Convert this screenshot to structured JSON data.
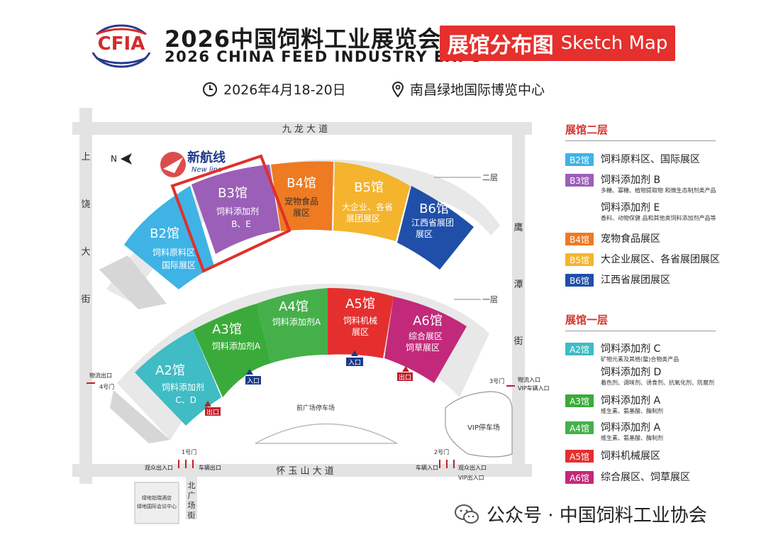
{
  "header": {
    "logo_text": "CFIA",
    "title_cn": "2026中国饲料工业展览会",
    "title_en": "2026 CHINA FEED INDUSTRY EXPO",
    "badge_cn": "展馆分布图",
    "badge_en": "Sketch Map",
    "date": "2026年4月18-20日",
    "venue": "南昌绿地国际博览中心"
  },
  "colors": {
    "B2": "#3fb3e6",
    "B3": "#9b5fb8",
    "B4": "#ee7a22",
    "B5": "#f4b42d",
    "B6": "#1f4fa8",
    "A2": "#3fbcc4",
    "A3": "#3aab3a",
    "A4": "#45b04a",
    "A5": "#e52f2f",
    "A6": "#c2297a",
    "accent": "#e5302d"
  },
  "map": {
    "north_label": "N",
    "watermark_cn": "新航线",
    "watermark_en": "New line",
    "roads": {
      "north": "九 龙 大 道",
      "south": "怀 玉 山 大 道",
      "west": [
        "上",
        "饶",
        "大",
        "街"
      ],
      "east": [
        "鹰",
        "潭",
        "街"
      ],
      "south_west": [
        "北",
        "广",
        "场",
        "街"
      ]
    },
    "floor_labels": {
      "upper": "二层",
      "lower": "一层"
    },
    "halls_upper": [
      {
        "id": "B2",
        "name": "B2馆",
        "desc": [
          "饲料原料区",
          "国际展区"
        ]
      },
      {
        "id": "B3",
        "name": "B3馆",
        "desc": [
          "饲料添加剂",
          "B、E"
        ]
      },
      {
        "id": "B4",
        "name": "B4馆",
        "desc": [
          "宠物食品",
          "展区"
        ]
      },
      {
        "id": "B5",
        "name": "B5馆",
        "desc": [
          "大企业、各省",
          "展团展区"
        ]
      },
      {
        "id": "B6",
        "name": "B6馆",
        "desc": [
          "江西省展团",
          "展区"
        ]
      }
    ],
    "halls_lower": [
      {
        "id": "A2",
        "name": "A2馆",
        "desc": [
          "饲料添加剂",
          "C、D"
        ]
      },
      {
        "id": "A3",
        "name": "A3馆",
        "desc": [
          "饲料添加剂A"
        ]
      },
      {
        "id": "A4",
        "name": "A4馆",
        "desc": [
          "饲料添加剂A"
        ]
      },
      {
        "id": "A5",
        "name": "A5馆",
        "desc": [
          "饲料机械",
          "展区"
        ]
      },
      {
        "id": "A6",
        "name": "A6馆",
        "desc": [
          "综合展区",
          "饲草展区"
        ]
      }
    ],
    "labels": {
      "entrance": "入口",
      "exit": "出口",
      "plaza": "前广场停车场",
      "vip_parking": "VIP停车场",
      "gate1": "1号门",
      "gate2": "2号门",
      "gate3": "3号门",
      "gate4": "4号门",
      "logistics_exit": "物流出口",
      "logistics_entry": "物流入口",
      "vip_vehicle_entry": "VIP车辆入口",
      "visitor_io": "观众出入口",
      "vehicle_exit": "车辆出口",
      "vehicle_entry": "车辆入口",
      "vip_io": "VIP出入口",
      "hotel_block": [
        "绿地铂瑞酒店",
        "绿地国际会议中心"
      ]
    }
  },
  "legend": {
    "floor2_title": "展馆二层",
    "floor1_title": "展馆一层",
    "floor2": [
      {
        "badge": "B2馆",
        "color": "#3fb3e6",
        "text": "饲料原料区、国际展区",
        "sub": ""
      },
      {
        "badge": "B3馆",
        "color": "#9b5fb8",
        "text": "饲料添加剂 B",
        "sub": "多糖、寡糖、植物提取物 和微生态制剂类产品"
      },
      {
        "badge": "",
        "color": "",
        "text": "饲料添加剂 E",
        "sub": "香料、动物保健 品和其他类饲料添加剂产品等"
      },
      {
        "badge": "B4馆",
        "color": "#ee7a22",
        "text": "宠物食品展区",
        "sub": ""
      },
      {
        "badge": "B5馆",
        "color": "#f4b42d",
        "text": "大企业展区、各省展团展区",
        "sub": ""
      },
      {
        "badge": "B6馆",
        "color": "#1f4fa8",
        "text": "江西省展团展区",
        "sub": ""
      }
    ],
    "floor1": [
      {
        "badge": "A2馆",
        "color": "#3fbcc4",
        "text": "饲料添加剂 C",
        "sub": "矿物元素及其络(螯)合物类产品"
      },
      {
        "badge": "",
        "color": "",
        "text": "饲料添加剂 D",
        "sub": "着色剂、调味剂、诱食剂、抗氧化剂、防腐剂"
      },
      {
        "badge": "A3馆",
        "color": "#3aab3a",
        "text": "饲料添加剂 A",
        "sub": "维生素、氨基酸、酶制剂"
      },
      {
        "badge": "A4馆",
        "color": "#45b04a",
        "text": "饲料添加剂 A",
        "sub": "维生素、氨基酸、酶制剂"
      },
      {
        "badge": "A5馆",
        "color": "#e52f2f",
        "text": "饲料机械展区",
        "sub": ""
      },
      {
        "badge": "A6馆",
        "color": "#c2297a",
        "text": "综合展区、饲草展区",
        "sub": ""
      }
    ]
  },
  "footer": {
    "prefix": "公众号 · ",
    "account": "中国饲料工业协会"
  }
}
